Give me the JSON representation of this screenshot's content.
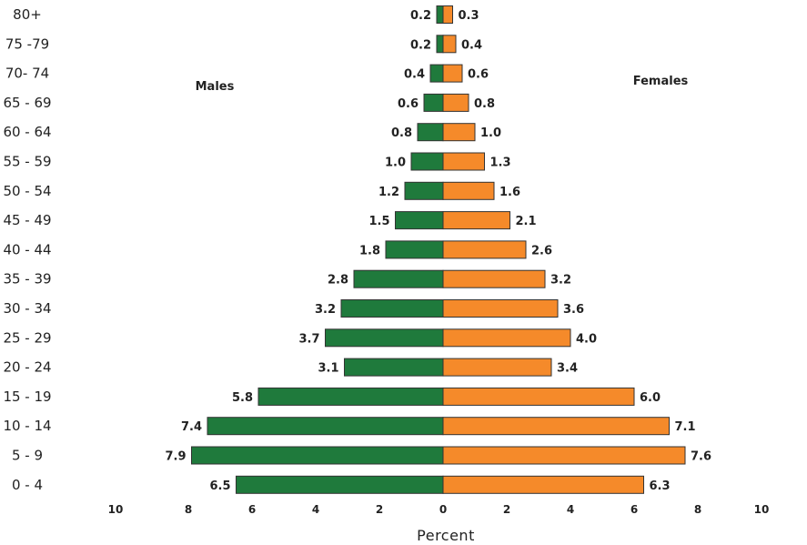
{
  "chart_data": {
    "type": "bar",
    "orientation": "horizontal",
    "layout": "population-pyramid",
    "categories": [
      "80+",
      "75 -79",
      "70- 74",
      "65 - 69",
      "60 - 64",
      "55 - 59",
      "50 - 54",
      "45 - 49",
      "40 - 44",
      "35 - 39",
      "30 - 34",
      "25 - 29",
      "20 - 24",
      "15 - 19",
      "10 - 14",
      "5 - 9",
      "0 - 4"
    ],
    "series": [
      {
        "name": "Males",
        "side": "left",
        "color": "#1f7a3c",
        "values": [
          0.2,
          0.2,
          0.4,
          0.6,
          0.8,
          1.0,
          1.2,
          1.5,
          1.8,
          2.8,
          3.2,
          3.7,
          3.1,
          5.8,
          7.4,
          7.9,
          6.5
        ],
        "labels": [
          "0.2",
          "0.2",
          "0.4",
          "0.6",
          "0.8",
          "1.0",
          "1.2",
          "1.5",
          "1.8",
          "2.8",
          "3.2",
          "3.7",
          "3.1",
          "5.8",
          "7.4",
          "7.9",
          "6.5"
        ]
      },
      {
        "name": "Females",
        "side": "right",
        "color": "#f58a2a",
        "values": [
          0.3,
          0.4,
          0.6,
          0.8,
          1.0,
          1.3,
          1.6,
          2.1,
          2.6,
          3.2,
          3.6,
          4.0,
          3.4,
          6.0,
          7.1,
          7.6,
          6.3
        ],
        "labels": [
          "0.3",
          "0.4",
          "0.6",
          "0.8",
          "1.0",
          "1.3",
          "1.6",
          "2.1",
          "2.6",
          "3.2",
          "3.6",
          "4.0",
          "3.4",
          "6.0",
          "7.1",
          "7.6",
          "6.3"
        ]
      }
    ],
    "xlim": [
      -10,
      10
    ],
    "x_ticks": [
      10,
      8,
      6,
      4,
      2,
      0,
      2,
      4,
      6,
      8,
      10
    ],
    "xlabel": "Percent",
    "ylabel": "",
    "title": "",
    "grid": false,
    "bar_outline_color": "#333333"
  }
}
